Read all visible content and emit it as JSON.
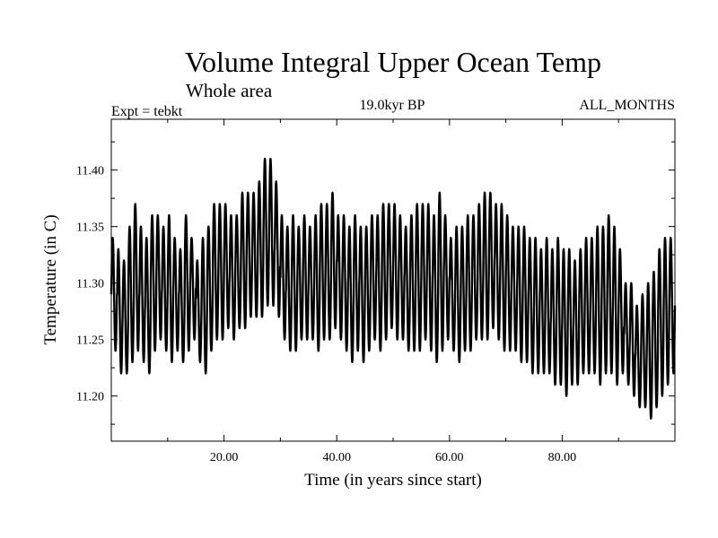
{
  "chart_data": {
    "type": "line",
    "title": "Volume Integral Upper Ocean Temp",
    "subtitle": "Whole area",
    "experiment": "Expt = tebkt",
    "period": "19.0kyr BP",
    "months": "ALL_MONTHS",
    "xlabel": "Time (in years since start)",
    "ylabel": "Temperature (in C)",
    "xlim": [
      0,
      100
    ],
    "ylim": [
      11.16,
      11.445
    ],
    "x_ticks": [
      20,
      40,
      60,
      80
    ],
    "x_tick_labels": [
      "20.00",
      "40.00",
      "60.00",
      "80.00"
    ],
    "y_ticks": [
      11.2,
      11.25,
      11.3,
      11.35,
      11.4
    ],
    "y_tick_labels": [
      "11.20",
      "11.25",
      "11.30",
      "11.35",
      "11.40"
    ],
    "grid": false,
    "series": [
      {
        "name": "ALL_MONTHS",
        "cycles_per_year": 1,
        "annual_maxima": [
          11.34,
          11.33,
          11.32,
          11.35,
          11.37,
          11.35,
          11.34,
          11.36,
          11.36,
          11.35,
          11.36,
          11.34,
          11.33,
          11.36,
          11.34,
          11.32,
          11.34,
          11.35,
          11.37,
          11.37,
          11.37,
          11.36,
          11.36,
          11.38,
          11.38,
          11.38,
          11.39,
          11.41,
          11.41,
          11.39,
          11.36,
          11.35,
          11.36,
          11.35,
          11.36,
          11.35,
          11.36,
          11.37,
          11.37,
          11.38,
          11.36,
          11.36,
          11.35,
          11.36,
          11.35,
          11.35,
          11.36,
          11.36,
          11.37,
          11.37,
          11.37,
          11.36,
          11.35,
          11.36,
          11.37,
          11.37,
          11.37,
          11.36,
          11.38,
          11.36,
          11.34,
          11.35,
          11.35,
          11.36,
          11.36,
          11.37,
          11.38,
          11.38,
          11.37,
          11.37,
          11.36,
          11.35,
          11.35,
          11.35,
          11.34,
          11.34,
          11.33,
          11.34,
          11.33,
          11.34,
          11.33,
          11.33,
          11.32,
          11.33,
          11.34,
          11.34,
          11.35,
          11.35,
          11.36,
          11.35,
          11.33,
          11.3,
          11.3,
          11.28,
          11.29,
          11.3,
          11.31,
          11.33,
          11.34,
          11.34
        ],
        "annual_minima": [
          11.24,
          11.22,
          11.22,
          11.23,
          11.24,
          11.23,
          11.22,
          11.24,
          11.25,
          11.24,
          11.23,
          11.24,
          11.23,
          11.24,
          11.25,
          11.23,
          11.22,
          11.24,
          11.25,
          11.25,
          11.26,
          11.25,
          11.26,
          11.26,
          11.27,
          11.27,
          11.27,
          11.28,
          11.28,
          11.27,
          11.25,
          11.24,
          11.24,
          11.25,
          11.25,
          11.25,
          11.24,
          11.25,
          11.25,
          11.26,
          11.25,
          11.24,
          11.23,
          11.24,
          11.23,
          11.24,
          11.25,
          11.24,
          11.25,
          11.26,
          11.25,
          11.25,
          11.24,
          11.24,
          11.24,
          11.25,
          11.24,
          11.23,
          11.24,
          11.25,
          11.24,
          11.23,
          11.24,
          11.24,
          11.25,
          11.25,
          11.25,
          11.26,
          11.25,
          11.24,
          11.24,
          11.24,
          11.23,
          11.23,
          11.22,
          11.22,
          11.22,
          11.22,
          11.21,
          11.21,
          11.2,
          11.21,
          11.21,
          11.22,
          11.22,
          11.22,
          11.21,
          11.22,
          11.22,
          11.21,
          11.22,
          11.21,
          11.2,
          11.19,
          11.19,
          11.18,
          11.19,
          11.2,
          11.21,
          11.22
        ]
      }
    ]
  }
}
